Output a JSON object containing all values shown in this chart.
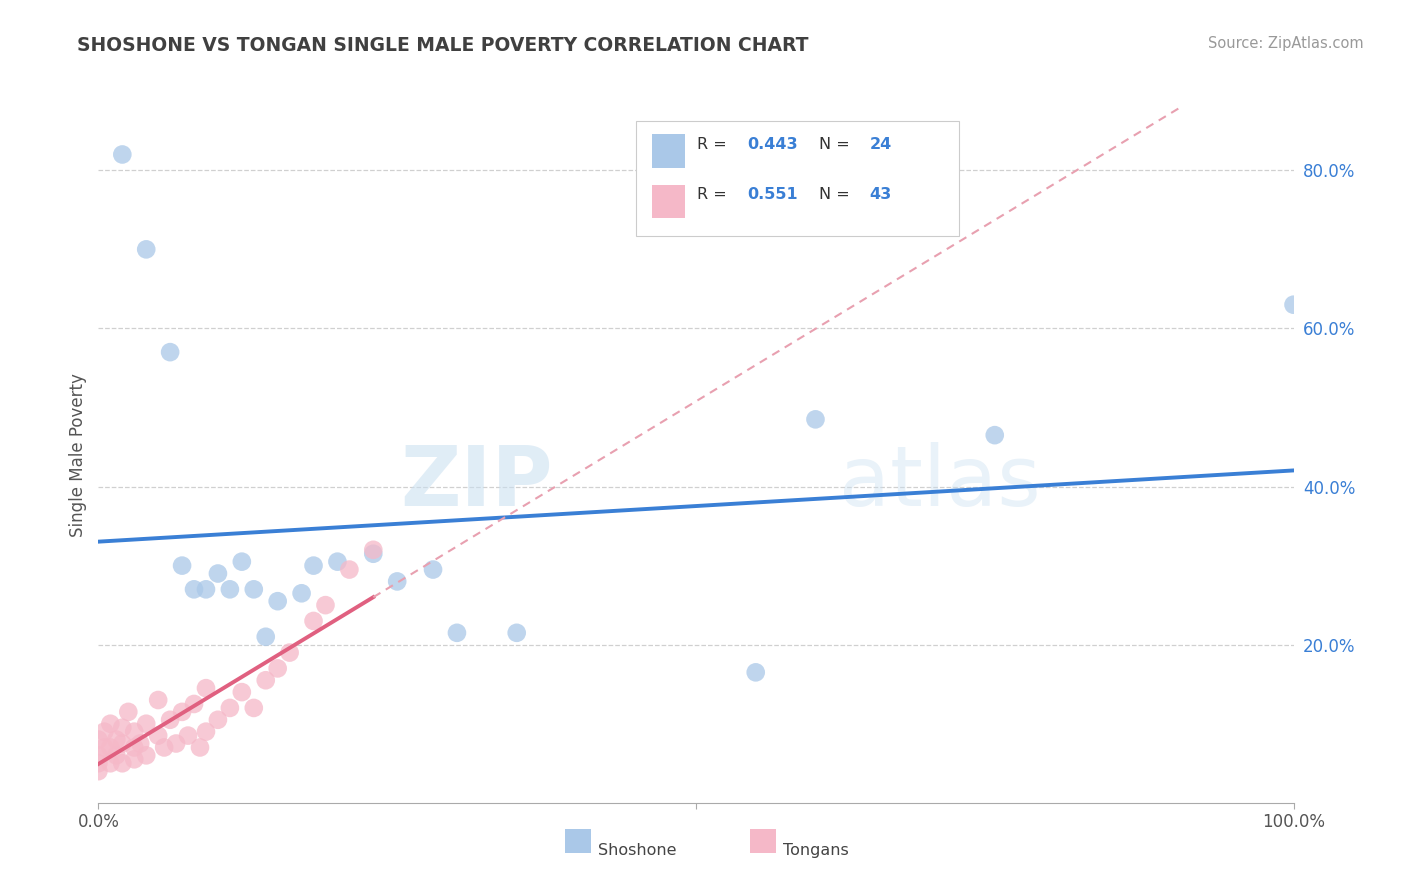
{
  "title": "SHOSHONE VS TONGAN SINGLE MALE POVERTY CORRELATION CHART",
  "source": "Source: ZipAtlas.com",
  "ylabel": "Single Male Poverty",
  "xlim": [
    0.0,
    1.0
  ],
  "ylim": [
    0.0,
    0.88
  ],
  "shoshone_color": "#aac8e8",
  "tongan_color": "#f5b8c8",
  "shoshone_R": 0.443,
  "shoshone_N": 24,
  "tongan_R": 0.551,
  "tongan_N": 43,
  "shoshone_x": [
    0.02,
    0.04,
    0.06,
    0.07,
    0.08,
    0.09,
    0.1,
    0.11,
    0.12,
    0.13,
    0.14,
    0.15,
    0.17,
    0.18,
    0.2,
    0.23,
    0.25,
    0.28,
    0.3,
    0.35,
    0.55,
    0.6,
    0.75,
    1.0
  ],
  "shoshone_y": [
    0.82,
    0.7,
    0.57,
    0.3,
    0.27,
    0.27,
    0.29,
    0.27,
    0.305,
    0.27,
    0.21,
    0.255,
    0.265,
    0.3,
    0.305,
    0.315,
    0.28,
    0.295,
    0.215,
    0.215,
    0.165,
    0.485,
    0.465,
    0.63
  ],
  "tongan_x": [
    0.0,
    0.0,
    0.0,
    0.0,
    0.005,
    0.005,
    0.01,
    0.01,
    0.01,
    0.015,
    0.015,
    0.02,
    0.02,
    0.02,
    0.025,
    0.03,
    0.03,
    0.03,
    0.035,
    0.04,
    0.04,
    0.05,
    0.05,
    0.055,
    0.06,
    0.065,
    0.07,
    0.075,
    0.08,
    0.085,
    0.09,
    0.09,
    0.1,
    0.11,
    0.12,
    0.13,
    0.14,
    0.15,
    0.16,
    0.18,
    0.19,
    0.21,
    0.23
  ],
  "tongan_y": [
    0.05,
    0.06,
    0.08,
    0.04,
    0.07,
    0.09,
    0.05,
    0.07,
    0.1,
    0.06,
    0.08,
    0.05,
    0.075,
    0.095,
    0.115,
    0.055,
    0.07,
    0.09,
    0.075,
    0.06,
    0.1,
    0.085,
    0.13,
    0.07,
    0.105,
    0.075,
    0.115,
    0.085,
    0.125,
    0.07,
    0.09,
    0.145,
    0.105,
    0.12,
    0.14,
    0.12,
    0.155,
    0.17,
    0.19,
    0.23,
    0.25,
    0.295,
    0.32
  ],
  "watermark_zip": "ZIP",
  "watermark_atlas": "atlas",
  "background_color": "#ffffff",
  "grid_color": "#d0d0d0",
  "title_color": "#404040",
  "tick_color": "#3a7fd5",
  "legend_r_color": "#3a7fd5",
  "line_blue_color": "#3a7fd5",
  "line_pink_color": "#e06080",
  "line_pink_dash_color": "#e8a0b0"
}
